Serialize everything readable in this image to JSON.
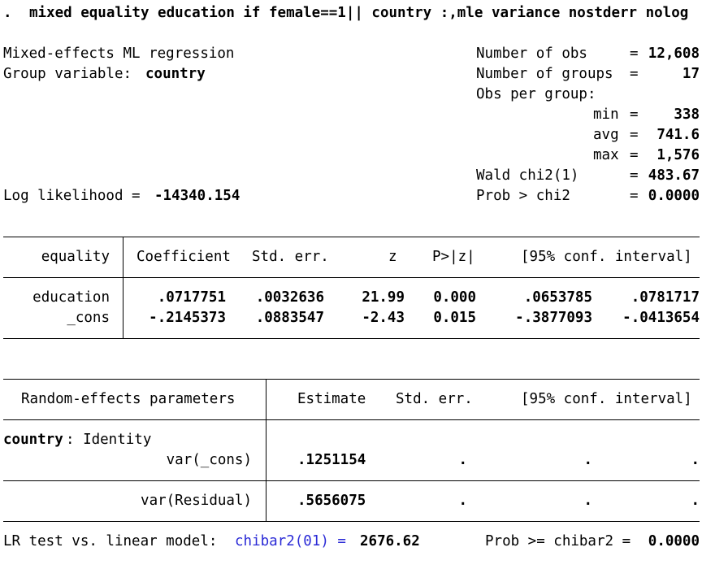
{
  "command": {
    "prompt": ".",
    "text": "mixed equality education if female==1|| country :,mle variance nostderr nolog"
  },
  "header": {
    "model_title": "Mixed-effects ML regression",
    "group_label": "Group variable: ",
    "group_value": "country",
    "log_likelihood_label": "Log likelihood = ",
    "log_likelihood_value": "-14340.154",
    "stats": {
      "nobs_label": "Number of obs",
      "nobs_value": "12,608",
      "ngroups_label": "Number of groups",
      "ngroups_value": "17",
      "obs_per_group_label": "Obs per group:",
      "min_label": "min",
      "min_value": "338",
      "avg_label": "avg",
      "avg_value": "741.6",
      "max_label": "max",
      "max_value": "1,576",
      "wald_label": "Wald chi2(1)",
      "wald_value": "483.67",
      "prob_label": "Prob > chi2",
      "prob_value": "0.0000",
      "eq": "="
    }
  },
  "fixed_table": {
    "depvar": "equality",
    "columns": [
      "Coefficient",
      "Std. err.",
      "z",
      "P>|z|",
      "[95% conf. interval]"
    ],
    "rows": [
      {
        "name": "education",
        "coef": ".0717751",
        "se": ".0032636",
        "z": "21.99",
        "p": "0.000",
        "lo": ".0653785",
        "hi": ".0781717"
      },
      {
        "name": "_cons",
        "coef": "-.2145373",
        "se": ".0883547",
        "z": "-2.43",
        "p": "0.015",
        "lo": "-.3877093",
        "hi": "-.0413654"
      }
    ]
  },
  "random_table": {
    "header_label": "Random-effects parameters",
    "columns": [
      "Estimate",
      "Std. err.",
      "[95% conf. interval]"
    ],
    "group_label": "country",
    "group_type": ": Identity",
    "rows": [
      {
        "name": "var(_cons)",
        "estimate": ".1251154",
        "se": ".",
        "lo": ".",
        "hi": "."
      },
      {
        "name": "var(Residual)",
        "estimate": ".5656075",
        "se": ".",
        "lo": ".",
        "hi": "."
      }
    ]
  },
  "lr_test": {
    "label": "LR test vs. linear model: ",
    "stat_label": "chibar2(01) = ",
    "stat_value": "2676.62",
    "prob_label": "Prob >= chibar2 = ",
    "prob_value": "0.0000"
  }
}
